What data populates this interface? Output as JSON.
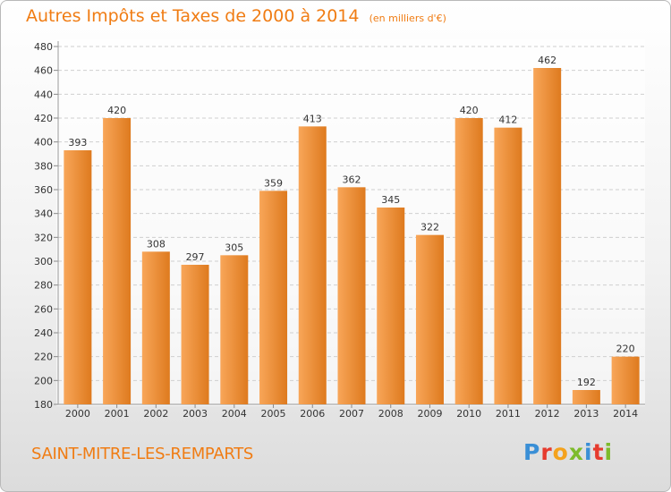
{
  "title": "Autres Impôts et Taxes de 2000 à 2014",
  "unit_note": "(en milliers d'€)",
  "commune": "SAINT-MITRE-LES-REMPARTS",
  "logo": {
    "text": "Proxiti",
    "colors": [
      "#3a8fd6",
      "#e63b2e",
      "#f4a21d",
      "#7dbb2b",
      "#3a8fd6",
      "#e63b2e",
      "#7dbb2b"
    ]
  },
  "colors": {
    "accent": "#f07c13",
    "bar_light": "#f8a659",
    "bar_dark": "#de7a1e",
    "grid": "#cfcfcf",
    "axis_text": "#333333"
  },
  "chart_data": {
    "type": "bar",
    "categories": [
      "2000",
      "2001",
      "2002",
      "2003",
      "2004",
      "2005",
      "2006",
      "2007",
      "2008",
      "2009",
      "2010",
      "2011",
      "2012",
      "2013",
      "2014"
    ],
    "values": [
      393,
      420,
      308,
      297,
      305,
      359,
      413,
      362,
      345,
      322,
      420,
      412,
      462,
      192,
      220
    ],
    "ylim": [
      180,
      480
    ],
    "yticks": [
      180,
      200,
      220,
      240,
      260,
      280,
      300,
      320,
      340,
      360,
      380,
      400,
      420,
      440,
      460,
      480
    ],
    "grid": true,
    "data_labels": true
  }
}
